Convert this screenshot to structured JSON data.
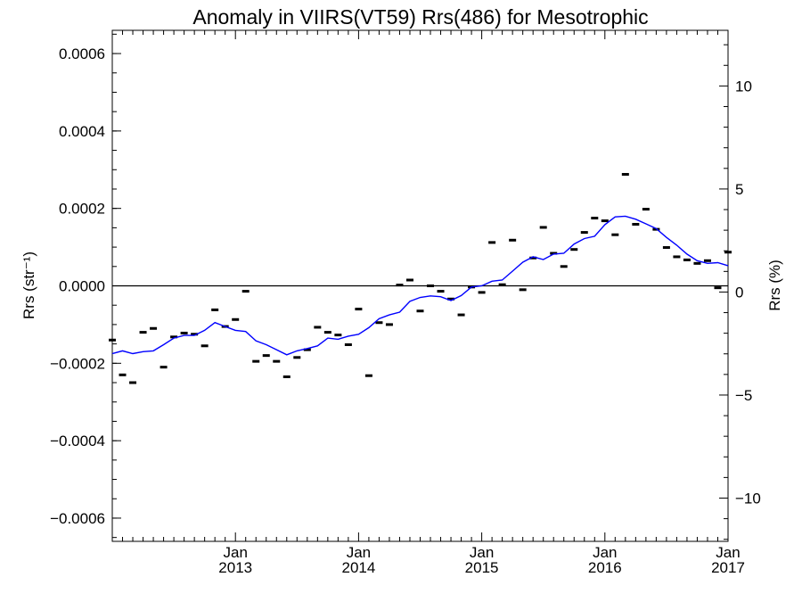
{
  "chart_data": {
    "type": "line",
    "title": "Anomaly in VIIRS(VT59) Rrs(486) for Mesotrophic",
    "ylabel": "Rrs (str⁻¹)",
    "y2label": "Rrs (%)",
    "grid": false,
    "ylim": [
      -0.00066,
      0.00066
    ],
    "y2lim": [
      -12.1,
      12.7
    ],
    "xlim": [
      "2012-01",
      "2017-01"
    ],
    "y_ticks": [
      -0.0006,
      -0.0004,
      -0.0002,
      0.0,
      0.0002,
      0.0004,
      0.0006
    ],
    "y_tick_labels": [
      "−0.0006",
      "−0.0004",
      "−0.0002",
      "0.0000",
      "0.0002",
      "0.0004",
      "0.0006"
    ],
    "y2_ticks": [
      -10,
      -5,
      0,
      5,
      10
    ],
    "y2_tick_labels": [
      "−10",
      "−5",
      "0",
      "5",
      "10"
    ],
    "x_ticks": [
      {
        "x": "2013-01",
        "month": "Jan",
        "year": "2013"
      },
      {
        "x": "2014-01",
        "month": "Jan",
        "year": "2014"
      },
      {
        "x": "2015-01",
        "month": "Jan",
        "year": "2015"
      },
      {
        "x": "2016-01",
        "month": "Jan",
        "year": "2016"
      },
      {
        "x": "2017-01",
        "month": "Jan",
        "year": "2017"
      }
    ],
    "series": [
      {
        "kind": "points",
        "color": "#000000",
        "points": [
          [
            "2012-01",
            -0.00014
          ],
          [
            "2012-02",
            -0.00023
          ],
          [
            "2012-03",
            -0.00025
          ],
          [
            "2012-04",
            -0.00012
          ],
          [
            "2012-05",
            -0.00011
          ],
          [
            "2012-06",
            -0.00021
          ],
          [
            "2012-07",
            -0.000132
          ],
          [
            "2012-08",
            -0.000122
          ],
          [
            "2012-09",
            -0.000125
          ],
          [
            "2012-10",
            -0.000155
          ],
          [
            "2012-11",
            -6.2e-05
          ],
          [
            "2012-12",
            -0.000105
          ],
          [
            "2013-01",
            -8.7e-05
          ],
          [
            "2013-02",
            -1.4e-05
          ],
          [
            "2013-03",
            -0.000195
          ],
          [
            "2013-04",
            -0.00018
          ],
          [
            "2013-05",
            -0.000195
          ],
          [
            "2013-06",
            -0.000235
          ],
          [
            "2013-07",
            -0.000185
          ],
          [
            "2013-08",
            -0.000165
          ],
          [
            "2013-09",
            -0.000107
          ],
          [
            "2013-10",
            -0.00012
          ],
          [
            "2013-11",
            -0.000127
          ],
          [
            "2013-12",
            -0.000152
          ],
          [
            "2014-01",
            -6e-05
          ],
          [
            "2014-02",
            -0.000232
          ],
          [
            "2014-03",
            -9.5e-05
          ],
          [
            "2014-04",
            -0.0001
          ],
          [
            "2014-05",
            2e-06
          ],
          [
            "2014-06",
            1.5e-05
          ],
          [
            "2014-07",
            -6.5e-05
          ],
          [
            "2014-08",
            0.0
          ],
          [
            "2014-09",
            -1.4e-05
          ],
          [
            "2014-10",
            -3.4e-05
          ],
          [
            "2014-11",
            -7.5e-05
          ],
          [
            "2014-12",
            -3e-06
          ],
          [
            "2015-01",
            -1.7e-05
          ],
          [
            "2015-02",
            0.000112
          ],
          [
            "2015-03",
            3e-06
          ],
          [
            "2015-04",
            0.000118
          ],
          [
            "2015-05",
            -1e-05
          ],
          [
            "2015-06",
            7.2e-05
          ],
          [
            "2015-07",
            0.000151
          ],
          [
            "2015-08",
            8.4e-05
          ],
          [
            "2015-09",
            5e-05
          ],
          [
            "2015-10",
            9.4e-05
          ],
          [
            "2015-11",
            0.000138
          ],
          [
            "2015-12",
            0.000175
          ],
          [
            "2016-01",
            0.000168
          ],
          [
            "2016-02",
            0.000132
          ],
          [
            "2016-03",
            0.000288
          ],
          [
            "2016-04",
            0.000159
          ],
          [
            "2016-05",
            0.000198
          ],
          [
            "2016-06",
            0.000146
          ],
          [
            "2016-07",
            9.9e-05
          ],
          [
            "2016-08",
            7.5e-05
          ],
          [
            "2016-09",
            6.7e-05
          ],
          [
            "2016-10",
            5.8e-05
          ],
          [
            "2016-11",
            6.5e-05
          ],
          [
            "2016-12",
            -5e-06
          ],
          [
            "2017-01",
            8.7e-05
          ]
        ]
      },
      {
        "kind": "line",
        "color": "#0000ff",
        "points": [
          [
            "2012-01",
            -0.000175
          ],
          [
            "2012-02",
            -0.000168
          ],
          [
            "2012-03",
            -0.000175
          ],
          [
            "2012-04",
            -0.00017
          ],
          [
            "2012-05",
            -0.000168
          ],
          [
            "2012-06",
            -0.000152
          ],
          [
            "2012-07",
            -0.000135
          ],
          [
            "2012-08",
            -0.000128
          ],
          [
            "2012-09",
            -0.000128
          ],
          [
            "2012-10",
            -0.000115
          ],
          [
            "2012-11",
            -9.5e-05
          ],
          [
            "2012-12",
            -0.000105
          ],
          [
            "2013-01",
            -0.000115
          ],
          [
            "2013-02",
            -0.000118
          ],
          [
            "2013-03",
            -0.000142
          ],
          [
            "2013-04",
            -0.000152
          ],
          [
            "2013-05",
            -0.000165
          ],
          [
            "2013-06",
            -0.000178
          ],
          [
            "2013-07",
            -0.000168
          ],
          [
            "2013-08",
            -0.000162
          ],
          [
            "2013-09",
            -0.000155
          ],
          [
            "2013-10",
            -0.000135
          ],
          [
            "2013-11",
            -0.000138
          ],
          [
            "2013-12",
            -0.00013
          ],
          [
            "2014-01",
            -0.000125
          ],
          [
            "2014-02",
            -0.000108
          ],
          [
            "2014-03",
            -8.5e-05
          ],
          [
            "2014-04",
            -7.5e-05
          ],
          [
            "2014-05",
            -6.8e-05
          ],
          [
            "2014-06",
            -4e-05
          ],
          [
            "2014-07",
            -3e-05
          ],
          [
            "2014-08",
            -2.6e-05
          ],
          [
            "2014-09",
            -2.8e-05
          ],
          [
            "2014-10",
            -3.8e-05
          ],
          [
            "2014-11",
            -2.5e-05
          ],
          [
            "2014-12",
            -3e-06
          ],
          [
            "2015-01",
            0.0
          ],
          [
            "2015-02",
            1.2e-05
          ],
          [
            "2015-03",
            1.5e-05
          ],
          [
            "2015-04",
            3.8e-05
          ],
          [
            "2015-05",
            6.1e-05
          ],
          [
            "2015-06",
            7.5e-05
          ],
          [
            "2015-07",
            6.8e-05
          ],
          [
            "2015-08",
            8.2e-05
          ],
          [
            "2015-09",
            8.4e-05
          ],
          [
            "2015-10",
            0.000108
          ],
          [
            "2015-11",
            0.000122
          ],
          [
            "2015-12",
            0.000128
          ],
          [
            "2016-01",
            0.000158
          ],
          [
            "2016-02",
            0.000178
          ],
          [
            "2016-03",
            0.00018
          ],
          [
            "2016-04",
            0.000172
          ],
          [
            "2016-05",
            0.00016
          ],
          [
            "2016-06",
            0.000148
          ],
          [
            "2016-07",
            0.000125
          ],
          [
            "2016-08",
            0.000105
          ],
          [
            "2016-09",
            8.2e-05
          ],
          [
            "2016-10",
            6.5e-05
          ],
          [
            "2016-11",
            5.8e-05
          ],
          [
            "2016-12",
            6e-05
          ],
          [
            "2017-01",
            5.2e-05
          ]
        ]
      }
    ],
    "reference_line": {
      "y": 0,
      "color": "#000000"
    }
  }
}
